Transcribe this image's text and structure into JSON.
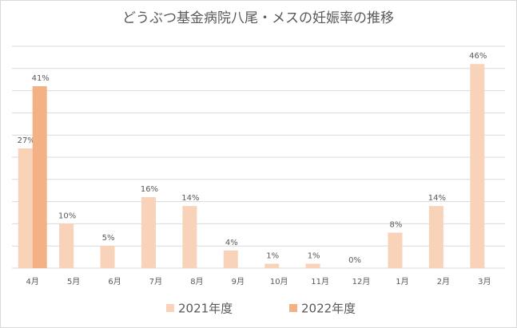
{
  "chart_data": {
    "type": "bar",
    "title": "どうぶつ基金病院八尾・メスの妊娠率の推移",
    "categories": [
      "4月",
      "5月",
      "6月",
      "7月",
      "8月",
      "9月",
      "10月",
      "11月",
      "12月",
      "1月",
      "2月",
      "3月"
    ],
    "series": [
      {
        "name": "2021年度",
        "color": "#f8d3b9",
        "values": [
          27,
          10,
          5,
          16,
          14,
          4,
          1,
          1,
          0,
          8,
          14,
          46
        ],
        "value_labels": [
          "27%",
          "10%",
          "5%",
          "16%",
          "14%",
          "4%",
          "1%",
          "1%",
          "0%",
          "8%",
          "14%",
          "46%"
        ]
      },
      {
        "name": "2022年度",
        "color": "#f4b183",
        "values": [
          41,
          null,
          null,
          null,
          null,
          null,
          null,
          null,
          null,
          null,
          null,
          null
        ],
        "value_labels": [
          "41%",
          null,
          null,
          null,
          null,
          null,
          null,
          null,
          null,
          null,
          null,
          null
        ]
      }
    ],
    "ylim": [
      0,
      50
    ],
    "yticks": [
      0,
      5,
      10,
      15,
      20,
      25,
      30,
      35,
      40,
      45,
      50
    ],
    "grid": true,
    "legend": "bottom"
  }
}
